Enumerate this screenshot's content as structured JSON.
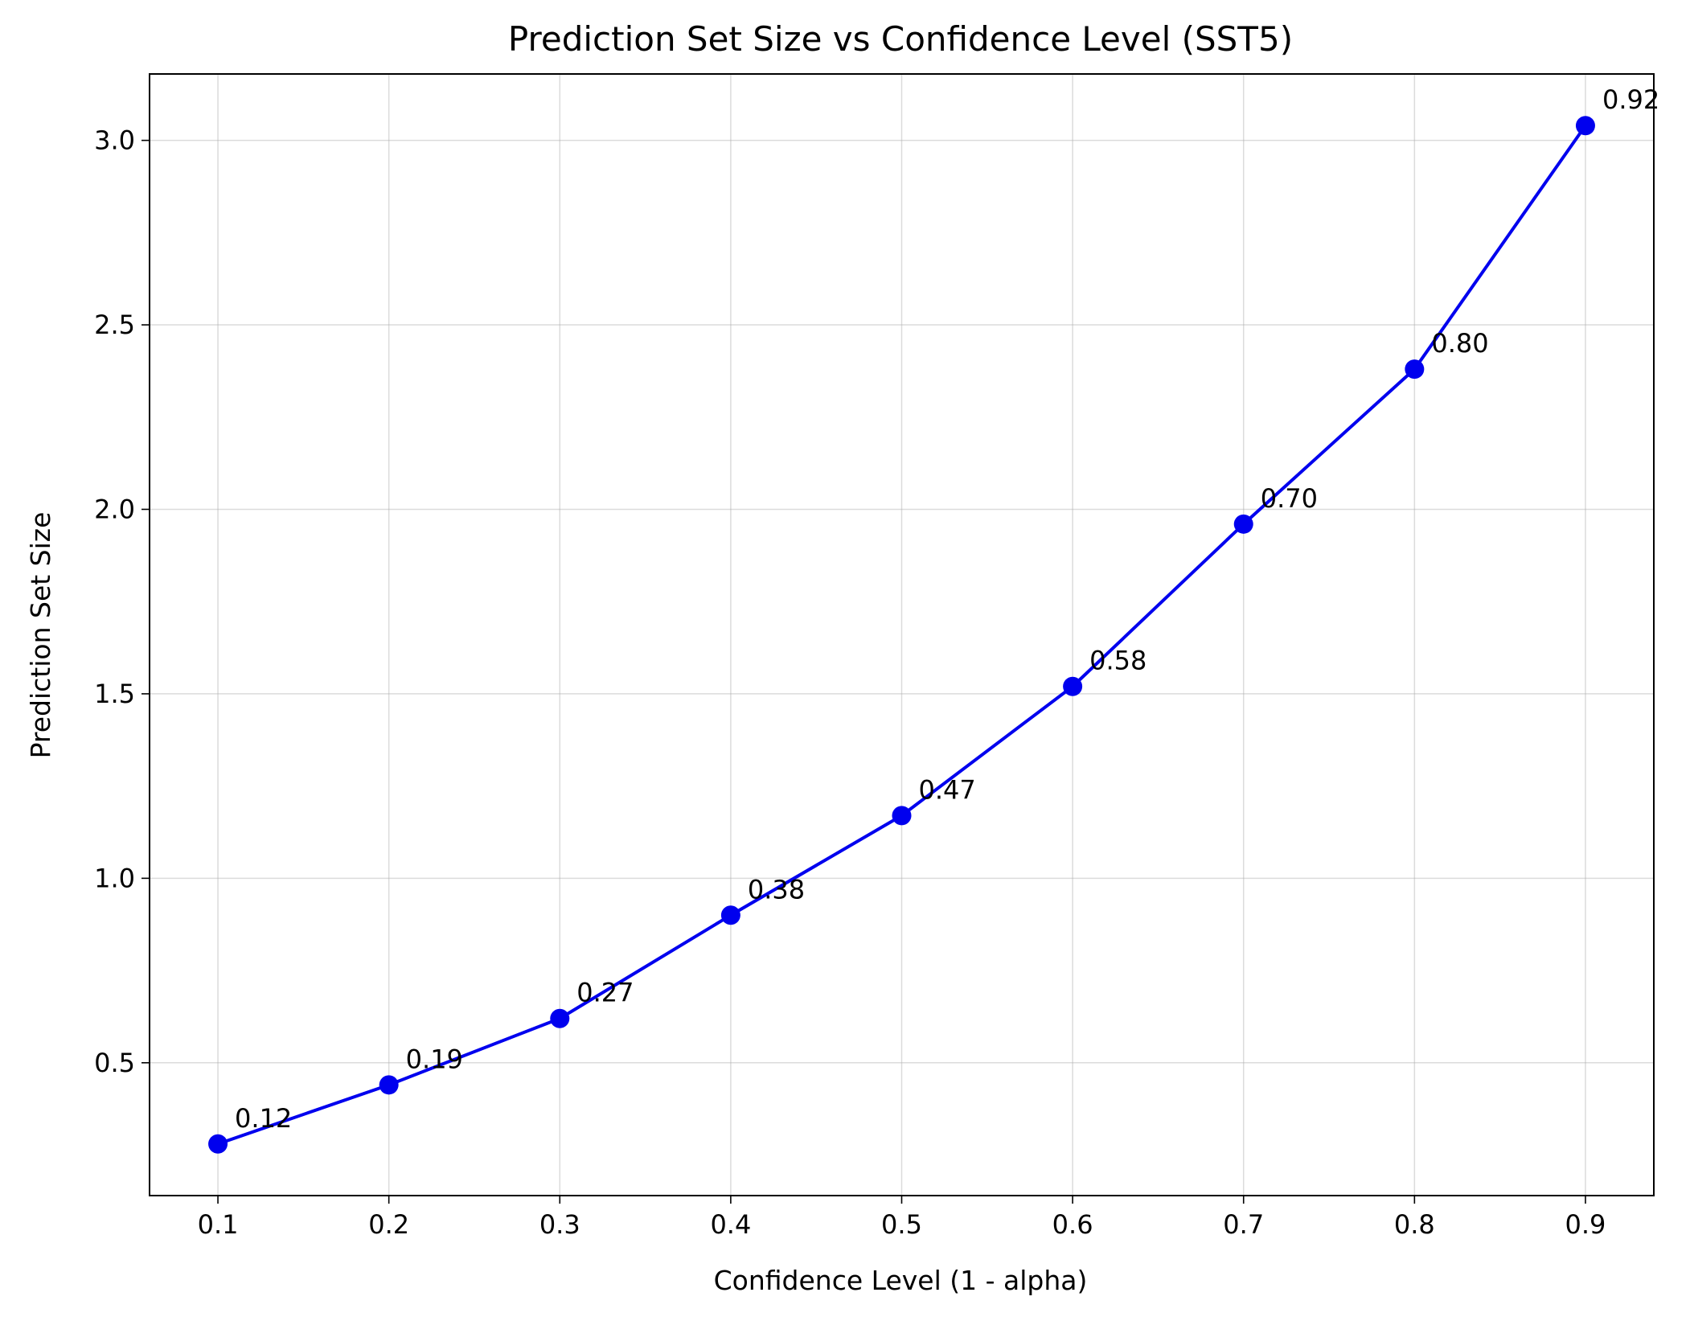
{
  "chart_data": {
    "type": "line",
    "title": "Prediction Set Size vs Confidence Level (SST5)",
    "xlabel": "Confidence Level (1 - alpha)",
    "ylabel": "Prediction Set Size",
    "xlim": [
      0.06,
      0.94
    ],
    "ylim": [
      0.14,
      3.18
    ],
    "xticks": [
      0.1,
      0.2,
      0.3,
      0.4,
      0.5,
      0.6,
      0.7,
      0.8,
      0.9
    ],
    "xtick_labels": [
      "0.1",
      "0.2",
      "0.3",
      "0.4",
      "0.5",
      "0.6",
      "0.7",
      "0.8",
      "0.9"
    ],
    "yticks": [
      0.5,
      1.0,
      1.5,
      2.0,
      2.5,
      3.0
    ],
    "ytick_labels": [
      "0.5",
      "1.0",
      "1.5",
      "2.0",
      "2.5",
      "3.0"
    ],
    "grid": true,
    "series": [
      {
        "color": "#0000ee",
        "x": [
          0.1,
          0.2,
          0.3,
          0.4,
          0.5,
          0.6,
          0.7,
          0.8,
          0.9
        ],
        "y": [
          0.28,
          0.44,
          0.62,
          0.9,
          1.17,
          1.52,
          1.96,
          2.38,
          3.04
        ],
        "point_labels": [
          "0.12",
          "0.19",
          "0.27",
          "0.38",
          "0.47",
          "0.58",
          "0.70",
          "0.80",
          "0.92"
        ]
      }
    ]
  }
}
